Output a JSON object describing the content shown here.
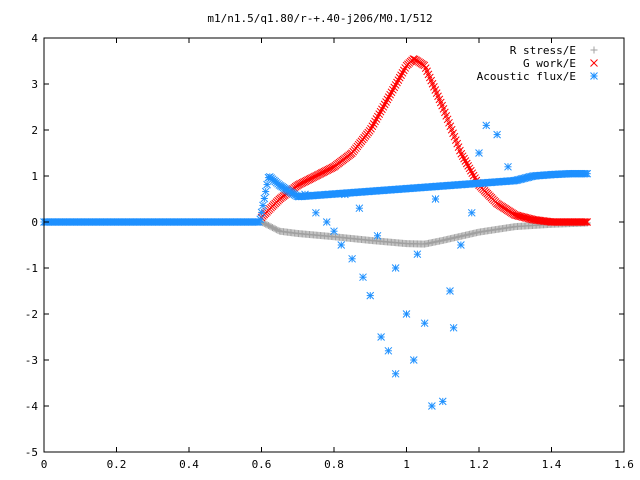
{
  "chart_data": {
    "type": "scatter",
    "title": "m1/n1.5/q1.80/r-+.40-j206/M0.1/512",
    "xlabel": "",
    "ylabel": "",
    "xlim": [
      0,
      1.6
    ],
    "ylim": [
      -5,
      4
    ],
    "x_ticks": [
      "0",
      "0.2",
      "0.4",
      "0.6",
      "0.8",
      "1",
      "1.2",
      "1.4",
      "1.6"
    ],
    "y_ticks": [
      "4",
      "3",
      "2",
      "1",
      "0",
      "-1",
      "-2",
      "-3",
      "-4",
      "-5"
    ],
    "legend_position": "top-right",
    "x_range": [
      0.0,
      1.51
    ],
    "series": [
      {
        "name": "R stress/E",
        "marker": "plus",
        "color": "#a0a0a0",
        "x": [
          0.0,
          0.6,
          0.65,
          0.7,
          0.8,
          0.9,
          1.0,
          1.05,
          1.1,
          1.2,
          1.3,
          1.4,
          1.5
        ],
        "values": [
          0.0,
          0.0,
          -0.2,
          -0.25,
          -0.32,
          -0.4,
          -0.47,
          -0.48,
          -0.4,
          -0.22,
          -0.1,
          -0.05,
          -0.02
        ]
      },
      {
        "name": "G work/E",
        "marker": "cross",
        "color": "#ff0000",
        "x": [
          0.6,
          0.65,
          0.7,
          0.75,
          0.8,
          0.85,
          0.9,
          0.95,
          1.0,
          1.02,
          1.05,
          1.1,
          1.15,
          1.2,
          1.25,
          1.3,
          1.35,
          1.4,
          1.5
        ],
        "values": [
          0.1,
          0.5,
          0.8,
          1.0,
          1.2,
          1.5,
          2.0,
          2.7,
          3.4,
          3.55,
          3.4,
          2.5,
          1.5,
          0.8,
          0.4,
          0.15,
          0.05,
          0.0,
          0.0
        ]
      },
      {
        "name": "Acoustic flux/E",
        "marker": "star",
        "color": "#1e90ff",
        "x": [
          0.0,
          0.595,
          0.62,
          0.65,
          0.68,
          0.7,
          1.3,
          1.35,
          1.4,
          1.45,
          1.5
        ],
        "values": [
          0.0,
          0.0,
          1.0,
          0.8,
          0.65,
          0.55,
          0.9,
          1.0,
          1.03,
          1.05,
          1.05
        ],
        "scatter_points": [
          [
            0.72,
            0.6
          ],
          [
            0.75,
            0.2
          ],
          [
            0.78,
            0.0
          ],
          [
            0.8,
            -0.2
          ],
          [
            0.82,
            -0.5
          ],
          [
            0.85,
            -0.8
          ],
          [
            0.88,
            -1.2
          ],
          [
            0.9,
            -1.6
          ],
          [
            0.93,
            -2.5
          ],
          [
            0.95,
            -2.8
          ],
          [
            0.97,
            -3.3
          ],
          [
            1.0,
            -2.0
          ],
          [
            1.02,
            -3.0
          ],
          [
            1.05,
            -2.2
          ],
          [
            1.07,
            -4.0
          ],
          [
            1.1,
            -3.9
          ],
          [
            1.12,
            -1.5
          ],
          [
            1.15,
            -0.5
          ],
          [
            1.18,
            0.2
          ],
          [
            1.2,
            1.5
          ],
          [
            1.22,
            2.1
          ],
          [
            1.25,
            1.9
          ],
          [
            1.28,
            1.2
          ],
          [
            0.87,
            0.3
          ],
          [
            0.92,
            -0.3
          ],
          [
            1.08,
            0.5
          ],
          [
            1.13,
            -2.3
          ],
          [
            0.97,
            -1.0
          ],
          [
            1.03,
            -0.7
          ],
          [
            0.83,
            0.6
          ]
        ]
      }
    ]
  }
}
